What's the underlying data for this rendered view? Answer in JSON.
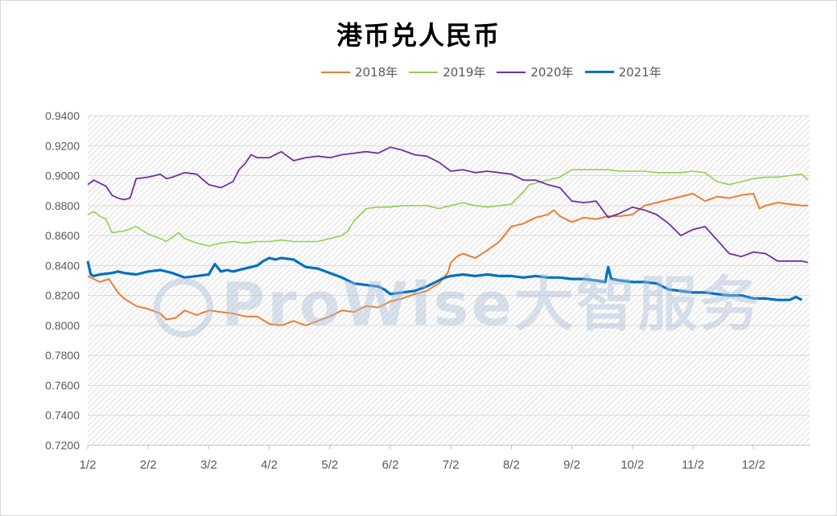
{
  "chart_data": {
    "type": "line",
    "title": "港币兑人民币",
    "xlabel": "",
    "ylabel": "",
    "ylim": [
      0.72,
      0.94
    ],
    "y_ticks": [
      "0.9400",
      "0.9200",
      "0.9000",
      "0.8800",
      "0.8600",
      "0.8400",
      "0.8200",
      "0.8000",
      "0.7800",
      "0.7600",
      "0.7400",
      "0.7200"
    ],
    "x_ticks": [
      "1/2",
      "2/2",
      "3/2",
      "4/2",
      "5/2",
      "6/2",
      "7/2",
      "8/2",
      "9/2",
      "10/2",
      "11/2",
      "12/2"
    ],
    "legend_position": "top",
    "grid": true,
    "x_unit": "month (1.0 = Jan 2)",
    "series": [
      {
        "name": "2018年",
        "color": "#ED7D31",
        "width": 2,
        "x": [
          1.0,
          1.2,
          1.35,
          1.5,
          1.6,
          1.8,
          2.0,
          2.2,
          2.3,
          2.45,
          2.6,
          2.8,
          3.0,
          3.2,
          3.4,
          3.6,
          3.8,
          4.0,
          4.2,
          4.4,
          4.6,
          4.8,
          5.0,
          5.2,
          5.4,
          5.6,
          5.8,
          6.0,
          6.2,
          6.4,
          6.6,
          6.8,
          6.95,
          7.0,
          7.1,
          7.2,
          7.4,
          7.6,
          7.8,
          8.0,
          8.2,
          8.4,
          8.6,
          8.7,
          8.8,
          9.0,
          9.2,
          9.4,
          9.6,
          9.8,
          10.0,
          10.2,
          10.4,
          10.6,
          10.8,
          11.0,
          11.2,
          11.4,
          11.6,
          11.8,
          12.0,
          12.1,
          12.2,
          12.4,
          12.6,
          12.8,
          12.9
        ],
        "y": [
          0.833,
          0.829,
          0.831,
          0.822,
          0.818,
          0.813,
          0.811,
          0.808,
          0.804,
          0.805,
          0.81,
          0.807,
          0.81,
          0.809,
          0.808,
          0.806,
          0.806,
          0.801,
          0.8,
          0.803,
          0.8,
          0.803,
          0.806,
          0.81,
          0.809,
          0.813,
          0.812,
          0.816,
          0.818,
          0.821,
          0.823,
          0.828,
          0.835,
          0.842,
          0.846,
          0.848,
          0.845,
          0.85,
          0.856,
          0.866,
          0.868,
          0.872,
          0.874,
          0.877,
          0.873,
          0.869,
          0.872,
          0.871,
          0.873,
          0.873,
          0.874,
          0.88,
          0.882,
          0.884,
          0.886,
          0.888,
          0.883,
          0.886,
          0.885,
          0.887,
          0.888,
          0.878,
          0.88,
          0.882,
          0.881,
          0.88,
          0.88
        ]
      },
      {
        "name": "2019年",
        "color": "#92D050",
        "width": 1.6,
        "x": [
          1.0,
          1.1,
          1.2,
          1.3,
          1.4,
          1.6,
          1.8,
          2.0,
          2.2,
          2.3,
          2.5,
          2.6,
          2.8,
          3.0,
          3.2,
          3.4,
          3.6,
          3.8,
          4.0,
          4.2,
          4.4,
          4.6,
          4.8,
          5.0,
          5.2,
          5.3,
          5.4,
          5.6,
          5.8,
          6.0,
          6.2,
          6.4,
          6.6,
          6.8,
          7.0,
          7.2,
          7.4,
          7.6,
          7.8,
          8.0,
          8.2,
          8.3,
          8.4,
          8.6,
          8.8,
          9.0,
          9.2,
          9.4,
          9.6,
          9.8,
          10.0,
          10.2,
          10.4,
          10.6,
          10.8,
          11.0,
          11.2,
          11.4,
          11.6,
          11.8,
          12.0,
          12.2,
          12.4,
          12.6,
          12.8,
          12.9
        ],
        "y": [
          0.874,
          0.876,
          0.873,
          0.871,
          0.862,
          0.863,
          0.866,
          0.861,
          0.858,
          0.856,
          0.862,
          0.858,
          0.855,
          0.853,
          0.855,
          0.856,
          0.855,
          0.856,
          0.856,
          0.857,
          0.856,
          0.856,
          0.856,
          0.858,
          0.86,
          0.863,
          0.87,
          0.878,
          0.879,
          0.879,
          0.88,
          0.88,
          0.88,
          0.878,
          0.88,
          0.882,
          0.88,
          0.879,
          0.88,
          0.881,
          0.889,
          0.894,
          0.895,
          0.897,
          0.899,
          0.904,
          0.904,
          0.904,
          0.904,
          0.903,
          0.903,
          0.903,
          0.902,
          0.902,
          0.902,
          0.903,
          0.902,
          0.896,
          0.894,
          0.896,
          0.898,
          0.899,
          0.899,
          0.9,
          0.901,
          0.897
        ]
      },
      {
        "name": "2020年",
        "color": "#7030A0",
        "width": 1.8,
        "x": [
          1.0,
          1.1,
          1.2,
          1.3,
          1.4,
          1.5,
          1.6,
          1.7,
          1.8,
          2.0,
          2.2,
          2.3,
          2.4,
          2.6,
          2.8,
          3.0,
          3.2,
          3.4,
          3.5,
          3.6,
          3.7,
          3.8,
          4.0,
          4.2,
          4.4,
          4.6,
          4.8,
          5.0,
          5.2,
          5.4,
          5.6,
          5.8,
          6.0,
          6.2,
          6.4,
          6.6,
          6.8,
          7.0,
          7.2,
          7.4,
          7.6,
          7.8,
          8.0,
          8.2,
          8.4,
          8.6,
          8.8,
          9.0,
          9.2,
          9.4,
          9.6,
          9.8,
          10.0,
          10.2,
          10.4,
          10.6,
          10.8,
          11.0,
          11.2,
          11.4,
          11.6,
          11.8,
          12.0,
          12.2,
          12.4,
          12.6,
          12.8,
          12.9
        ],
        "y": [
          0.894,
          0.897,
          0.895,
          0.893,
          0.887,
          0.885,
          0.884,
          0.885,
          0.898,
          0.899,
          0.901,
          0.898,
          0.899,
          0.902,
          0.901,
          0.894,
          0.892,
          0.896,
          0.904,
          0.908,
          0.914,
          0.912,
          0.912,
          0.916,
          0.91,
          0.912,
          0.913,
          0.912,
          0.914,
          0.915,
          0.916,
          0.915,
          0.919,
          0.917,
          0.914,
          0.913,
          0.909,
          0.903,
          0.904,
          0.902,
          0.903,
          0.902,
          0.901,
          0.897,
          0.897,
          0.894,
          0.892,
          0.883,
          0.882,
          0.883,
          0.872,
          0.875,
          0.879,
          0.877,
          0.874,
          0.868,
          0.86,
          0.864,
          0.866,
          0.857,
          0.848,
          0.846,
          0.849,
          0.848,
          0.843,
          0.843,
          0.843,
          0.842
        ]
      },
      {
        "name": "2021年",
        "color": "#0070C0",
        "width": 3.2,
        "x": [
          1.0,
          1.05,
          1.1,
          1.2,
          1.4,
          1.5,
          1.6,
          1.8,
          2.0,
          2.2,
          2.4,
          2.6,
          2.8,
          3.0,
          3.1,
          3.2,
          3.3,
          3.4,
          3.6,
          3.8,
          3.9,
          4.0,
          4.1,
          4.2,
          4.4,
          4.6,
          4.8,
          5.0,
          5.2,
          5.4,
          5.6,
          5.8,
          5.9,
          6.0,
          6.2,
          6.4,
          6.6,
          6.8,
          6.9,
          7.0,
          7.2,
          7.4,
          7.6,
          7.8,
          8.0,
          8.2,
          8.4,
          8.6,
          8.8,
          9.0,
          9.2,
          9.4,
          9.55,
          9.6,
          9.65,
          9.8,
          10.0,
          10.2,
          10.4,
          10.6,
          10.8,
          11.0,
          11.2,
          11.4,
          11.6,
          11.8,
          12.0,
          12.2,
          12.4,
          12.6,
          12.7,
          12.8
        ],
        "y": [
          0.843,
          0.834,
          0.833,
          0.834,
          0.835,
          0.836,
          0.835,
          0.834,
          0.836,
          0.837,
          0.835,
          0.832,
          0.833,
          0.834,
          0.841,
          0.836,
          0.837,
          0.836,
          0.838,
          0.84,
          0.843,
          0.845,
          0.844,
          0.845,
          0.844,
          0.839,
          0.838,
          0.835,
          0.832,
          0.828,
          0.827,
          0.826,
          0.824,
          0.821,
          0.822,
          0.823,
          0.826,
          0.83,
          0.832,
          0.833,
          0.834,
          0.833,
          0.834,
          0.833,
          0.833,
          0.832,
          0.833,
          0.832,
          0.832,
          0.831,
          0.831,
          0.83,
          0.829,
          0.839,
          0.831,
          0.83,
          0.829,
          0.829,
          0.828,
          0.824,
          0.823,
          0.822,
          0.822,
          0.821,
          0.82,
          0.82,
          0.818,
          0.818,
          0.817,
          0.817,
          0.819,
          0.817
        ]
      }
    ]
  },
  "watermark": "ProWise大智服务"
}
